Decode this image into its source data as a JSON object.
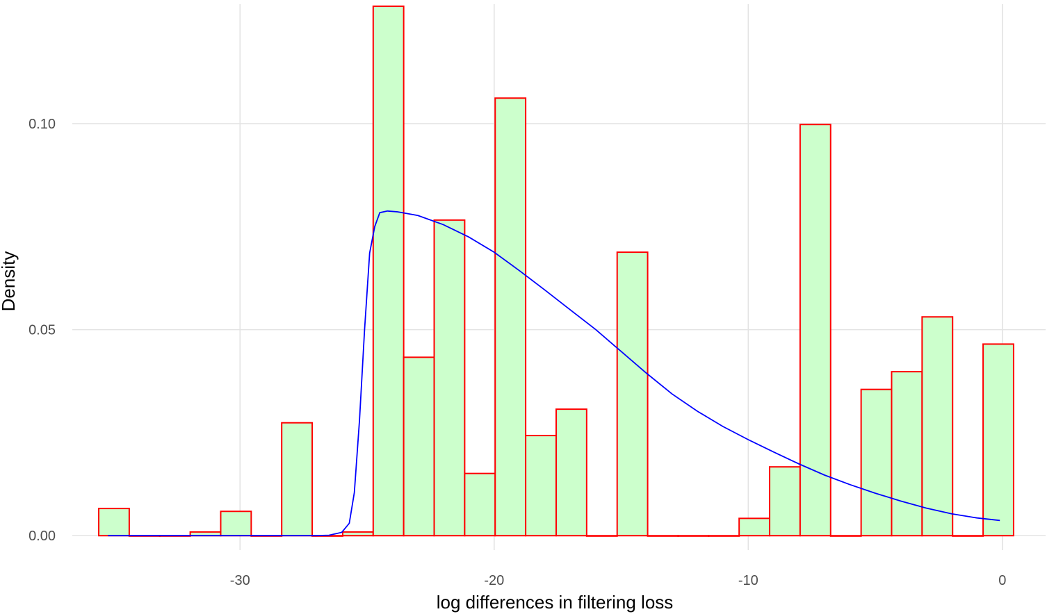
{
  "chart_data": {
    "type": "bar",
    "title": "",
    "xlabel": "log differences in filtering loss",
    "ylabel": "Density",
    "xlim": [
      -36.6,
      1.7
    ],
    "ylim": [
      -0.0035,
      0.129
    ],
    "x_ticks": [
      {
        "value": -30,
        "label": "-30"
      },
      {
        "value": -20,
        "label": "-20"
      },
      {
        "value": -10,
        "label": "-10"
      },
      {
        "value": 0,
        "label": "0"
      }
    ],
    "y_ticks": [
      {
        "value": 0.0,
        "label": "0.00"
      },
      {
        "value": 0.05,
        "label": "0.05"
      },
      {
        "value": 0.1,
        "label": "0.10"
      }
    ],
    "grid": true,
    "legend": "none",
    "colors": {
      "bar_fill": "#ccffcc",
      "bar_stroke": "#ff0000",
      "density_line": "#0000ff",
      "grid": "#e3e3e3",
      "tick_text": "#4d4d4d"
    },
    "bins": {
      "start": -35.56,
      "width": 1.2,
      "densities": [
        0.0066,
        0,
        0,
        0.0009,
        0.0059,
        0,
        0.0274,
        0,
        0.0009,
        0.1285,
        0.0433,
        0.0766,
        0.0151,
        0.1062,
        0.0243,
        0.0307,
        0,
        0.0688,
        0,
        0,
        0,
        0.0042,
        0.0167,
        0.0998,
        0,
        0.0355,
        0.0398,
        0.0531,
        0,
        0.0465
      ]
    },
    "density_curve": {
      "x": [
        -35.2,
        -27.0,
        -26.5,
        -26.0,
        -25.7,
        -25.5,
        -25.3,
        -25.1,
        -24.9,
        -24.7,
        -24.5,
        -24.2,
        -23.8,
        -23.0,
        -22.0,
        -21.0,
        -20.0,
        -19.0,
        -18.0,
        -17.0,
        -16.0,
        -15.0,
        -14.0,
        -13.0,
        -12.0,
        -11.0,
        -10.0,
        -9.0,
        -8.0,
        -7.0,
        -6.0,
        -5.0,
        -4.0,
        -3.0,
        -2.0,
        -1.0,
        -0.1
      ],
      "y": [
        0,
        0,
        0.0001,
        0.0008,
        0.003,
        0.0105,
        0.028,
        0.05,
        0.0686,
        0.075,
        0.0784,
        0.0788,
        0.0786,
        0.0777,
        0.0755,
        0.0725,
        0.0688,
        0.0643,
        0.0596,
        0.0548,
        0.05,
        0.0447,
        0.0394,
        0.0344,
        0.0302,
        0.0265,
        0.0233,
        0.0203,
        0.0174,
        0.0147,
        0.0124,
        0.0103,
        0.0084,
        0.0067,
        0.0053,
        0.0043,
        0.0037
      ]
    }
  }
}
